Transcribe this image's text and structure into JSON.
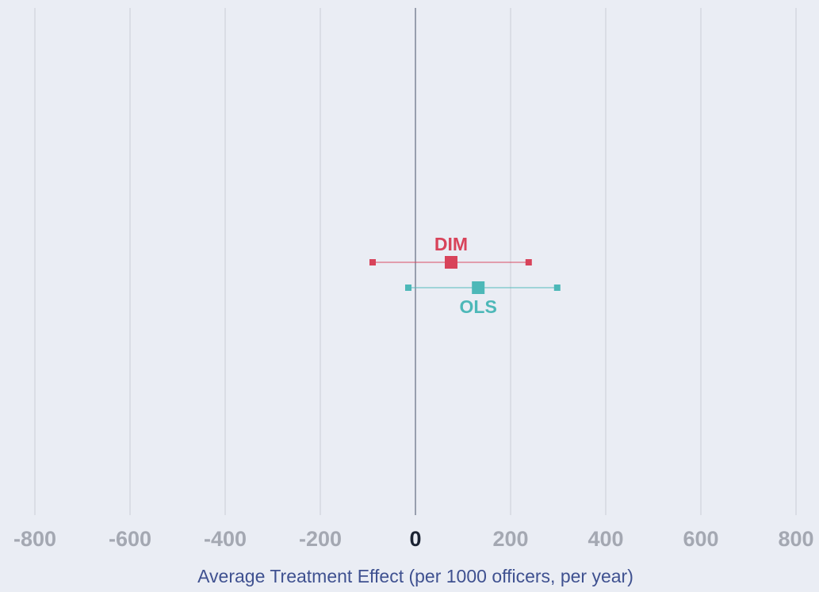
{
  "chart_data": {
    "type": "scatter",
    "subtype": "coefficient-plot-with-confidence-intervals",
    "title": "",
    "xlabel": "Average Treatment Effect (per 1000 officers, per year)",
    "ylabel": "",
    "xlim": [
      -800,
      800
    ],
    "xticks": [
      -800,
      -600,
      -400,
      -200,
      0,
      200,
      400,
      600,
      800
    ],
    "xtick_labels": [
      "-800",
      "-600",
      "-400",
      "-200",
      "0",
      "200",
      "400",
      "600",
      "800"
    ],
    "grid": "vertical",
    "legend": "none (series labelled directly on marks)",
    "series": [
      {
        "name": "DIM",
        "estimate": 75,
        "ci_low": -90,
        "ci_high": 238,
        "label_position": "above",
        "color": "#d8435a"
      },
      {
        "name": "OLS",
        "estimate": 132,
        "ci_low": -15,
        "ci_high": 298,
        "label_position": "below",
        "color": "#4db8b8"
      }
    ],
    "colors": {
      "background": "#eaedf4",
      "gridline": "#c9cdd6",
      "zero_line": "#7d8596",
      "tick_label": "#a4a8b2",
      "zero_tick_label": "#1b2333",
      "axis_title": "#3f5190"
    }
  }
}
